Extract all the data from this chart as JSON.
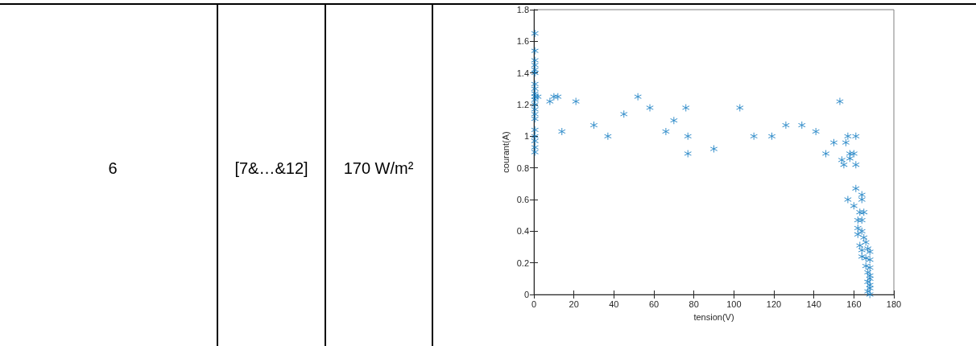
{
  "chart_data": {
    "type": "scatter",
    "xlabel": "tension(V)",
    "ylabel": "courant(A)",
    "annotations": [
      "6",
      "[7&…&12]",
      "170 W/m²"
    ],
    "xlim": [
      0,
      180
    ],
    "xticks": [
      0,
      20,
      40,
      60,
      80,
      100,
      120,
      140,
      160,
      180
    ],
    "ylim": [
      0,
      1.8
    ],
    "yticks": [
      0,
      0.2,
      0.4,
      0.6,
      0.8,
      1,
      1.2,
      1.4,
      1.6,
      1.8
    ],
    "grid": false,
    "marker": "star",
    "series": [
      {
        "color": "#0072bd",
        "x": [
          0.5,
          0.5,
          0.5,
          0.5,
          0.5,
          0.5,
          0.5,
          0.5,
          0.5,
          0.5,
          0.5,
          0.5,
          0.5,
          0.5,
          0.5,
          0.5,
          0.5,
          0.5,
          0.5,
          0.5,
          2,
          8,
          10,
          12,
          14,
          21,
          30,
          37,
          45,
          52,
          58,
          66,
          70,
          76,
          77,
          77,
          90,
          103,
          110,
          119,
          126,
          134,
          141,
          146,
          150,
          153,
          154,
          155,
          156,
          157,
          158,
          158,
          160,
          161,
          161,
          157,
          161,
          160,
          164,
          164,
          163,
          165,
          162,
          164,
          162,
          164,
          162,
          165,
          163,
          166,
          164,
          167,
          168,
          164,
          166,
          168,
          166,
          168,
          167,
          168,
          168,
          167,
          168,
          168,
          167,
          168
        ],
        "values": [
          1.65,
          1.54,
          1.48,
          1.45,
          1.42,
          1.4,
          1.33,
          1.3,
          1.27,
          1.25,
          1.23,
          1.2,
          1.17,
          1.14,
          1.11,
          1.04,
          1.0,
          0.97,
          0.93,
          0.9,
          1.25,
          1.22,
          1.25,
          1.25,
          1.03,
          1.22,
          1.07,
          1.0,
          1.14,
          1.25,
          1.18,
          1.03,
          1.1,
          1.18,
          1.0,
          0.89,
          0.92,
          1.18,
          1.0,
          1.0,
          1.07,
          1.07,
          1.03,
          0.89,
          0.96,
          1.22,
          0.85,
          0.82,
          0.96,
          1.0,
          0.89,
          0.86,
          0.89,
          1.0,
          0.82,
          0.6,
          0.67,
          0.56,
          0.63,
          0.6,
          0.52,
          0.52,
          0.47,
          0.47,
          0.42,
          0.4,
          0.38,
          0.36,
          0.31,
          0.33,
          0.28,
          0.29,
          0.27,
          0.24,
          0.23,
          0.22,
          0.18,
          0.17,
          0.14,
          0.12,
          0.1,
          0.08,
          0.06,
          0.04,
          0.02,
          0.0
        ]
      }
    ]
  }
}
